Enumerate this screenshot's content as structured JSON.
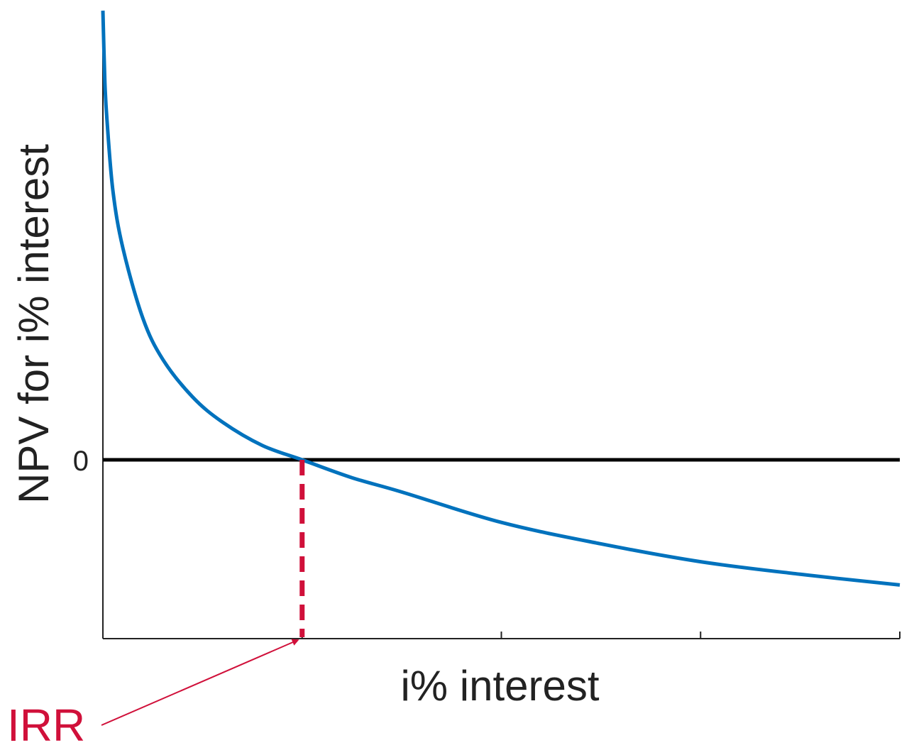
{
  "chart_data": {
    "type": "line",
    "title": "",
    "xlabel": "i% interest",
    "ylabel": "NPV for i% interest",
    "xlim": [
      0,
      4
    ],
    "ylim": [
      -1,
      2.5
    ],
    "grid": false,
    "x_ticks": [
      1,
      2,
      3,
      4
    ],
    "x_tick_labels": [],
    "y_ticks": [
      0
    ],
    "y_tick_labels": [
      "0"
    ],
    "series": [
      {
        "color": "#0072BD",
        "points": [
          {
            "x": 0.0,
            "y": 2.5
          },
          {
            "x": 0.01,
            "y": 2.1
          },
          {
            "x": 0.02,
            "y": 1.9
          },
          {
            "x": 0.05,
            "y": 1.5
          },
          {
            "x": 0.1,
            "y": 1.18
          },
          {
            "x": 0.2,
            "y": 0.79
          },
          {
            "x": 0.3,
            "y": 0.56
          },
          {
            "x": 0.45,
            "y": 0.35
          },
          {
            "x": 0.6,
            "y": 0.21
          },
          {
            "x": 0.8,
            "y": 0.08
          },
          {
            "x": 1.0,
            "y": 0.0
          },
          {
            "x": 1.25,
            "y": -0.1
          },
          {
            "x": 1.5,
            "y": -0.18
          },
          {
            "x": 2.0,
            "y": -0.35
          },
          {
            "x": 2.5,
            "y": -0.47
          },
          {
            "x": 3.0,
            "y": -0.57
          },
          {
            "x": 3.5,
            "y": -0.64
          },
          {
            "x": 4.0,
            "y": -0.7
          }
        ]
      }
    ],
    "reference_lines": [
      {
        "kind": "horizontal",
        "y": 0,
        "color": "#000000"
      },
      {
        "kind": "vertical-dashed",
        "x": 1.0,
        "color": "#D0103A"
      }
    ],
    "annotations": [
      {
        "text": "IRR",
        "points_to": {
          "x": 1.0,
          "y": -1
        },
        "color": "#D0103A"
      }
    ]
  }
}
